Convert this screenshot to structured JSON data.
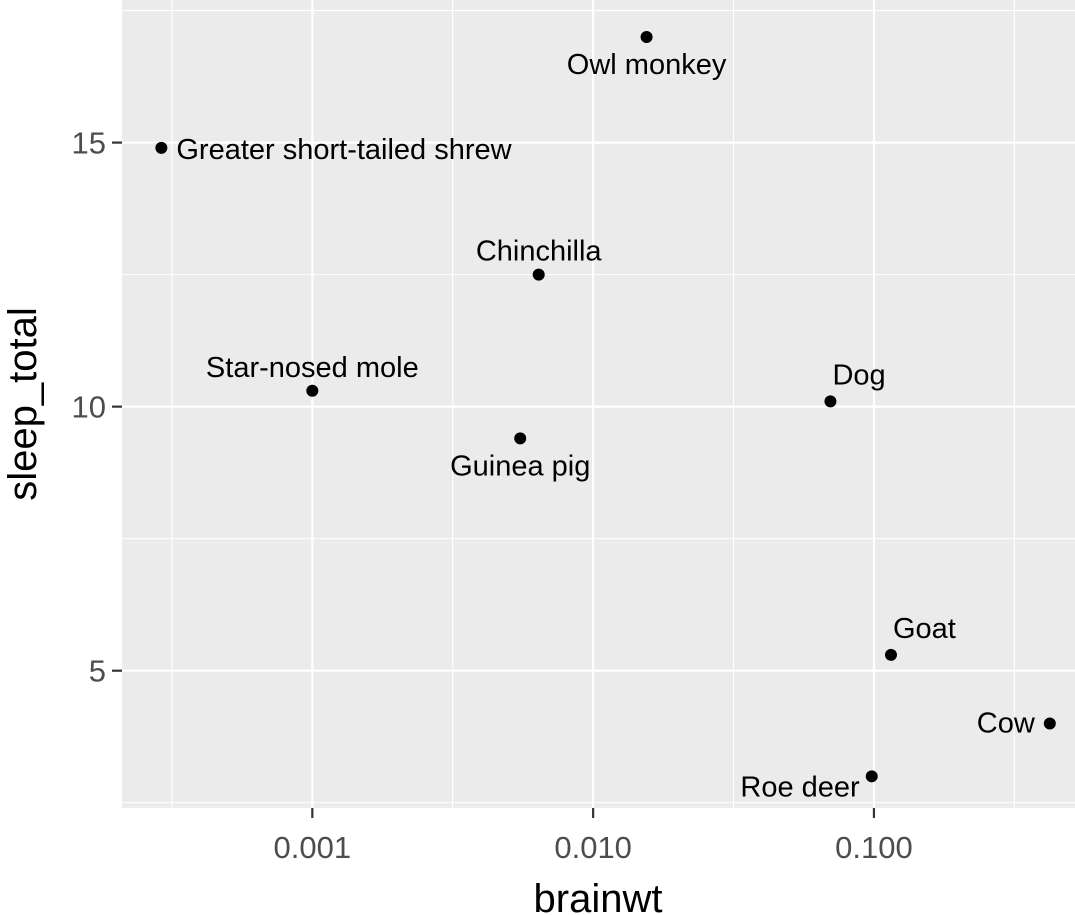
{
  "chart_data": {
    "type": "scatter",
    "title": "",
    "xlabel": "brainwt",
    "ylabel": "sleep_total",
    "x_scale": "log10",
    "xlim": [
      0.00021,
      0.52
    ],
    "ylim": [
      2.4,
      17.7
    ],
    "x_ticks": [
      {
        "value": 0.001,
        "label": "0.001"
      },
      {
        "value": 0.01,
        "label": "0.010"
      },
      {
        "value": 0.1,
        "label": "0.100"
      }
    ],
    "y_ticks": [
      {
        "value": 5,
        "label": "5"
      },
      {
        "value": 10,
        "label": "10"
      },
      {
        "value": 15,
        "label": "15"
      }
    ],
    "grid": true,
    "points": [
      {
        "name": "Owl monkey",
        "x": 0.0155,
        "y": 17.0,
        "label_pos": "below"
      },
      {
        "name": "Greater short-tailed shrew",
        "x": 0.00029,
        "y": 14.9,
        "label_pos": "right"
      },
      {
        "name": "Chinchilla",
        "x": 0.0064,
        "y": 12.5,
        "label_pos": "above"
      },
      {
        "name": "Star-nosed mole",
        "x": 0.001,
        "y": 10.3,
        "label_pos": "above"
      },
      {
        "name": "Dog",
        "x": 0.07,
        "y": 10.1,
        "label_pos": "above-right"
      },
      {
        "name": "Guinea pig",
        "x": 0.0055,
        "y": 9.4,
        "label_pos": "below"
      },
      {
        "name": "Goat",
        "x": 0.115,
        "y": 5.3,
        "label_pos": "above-right"
      },
      {
        "name": "Cow",
        "x": 0.423,
        "y": 4.0,
        "label_pos": "left"
      },
      {
        "name": "Roe deer",
        "x": 0.0982,
        "y": 3.0,
        "label_pos": "below-left"
      }
    ]
  }
}
